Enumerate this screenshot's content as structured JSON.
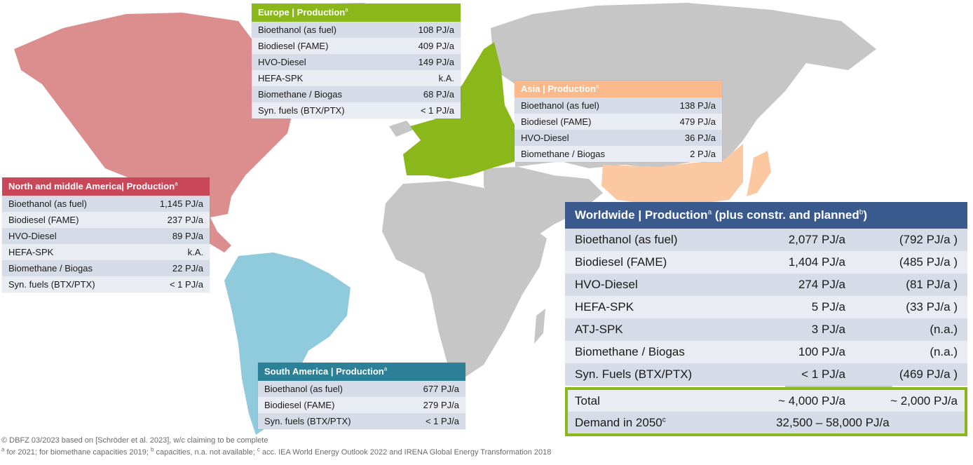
{
  "colors": {
    "na": "#c8485a",
    "na_land": "#dc8e8f",
    "europe": "#8ab81b",
    "asia": "#f9b98a",
    "asia_land": "#fbc8a2",
    "south_america": "#2c8097",
    "sa_land": "#8fcbdc",
    "worldwide": "#3a5a8d",
    "grey_land": "#c6c6c6"
  },
  "panels": {
    "europe": {
      "title": "Europe | Production",
      "sup": "a",
      "rows": [
        {
          "label": "Bioethanol (as fuel)",
          "value": "108 PJ/a"
        },
        {
          "label": "Biodiesel (FAME)",
          "value": "409 PJ/a"
        },
        {
          "label": "HVO-Diesel",
          "value": "149 PJ/a"
        },
        {
          "label": "HEFA-SPK",
          "value": "k.A."
        },
        {
          "label": "Biomethane / Biogas",
          "value": "68 PJ/a"
        },
        {
          "label": "Syn. fuels (BTX/PTX)",
          "value": "< 1 PJ/a"
        }
      ]
    },
    "asia": {
      "title": "Asia | Production",
      "sup": "a",
      "rows": [
        {
          "label": "Bioethanol (as fuel)",
          "value": "138 PJ/a"
        },
        {
          "label": "Biodiesel (FAME)",
          "value": "479 PJ/a"
        },
        {
          "label": "HVO-Diesel",
          "value": "36 PJ/a"
        },
        {
          "label": "Biomethane / Biogas",
          "value": "2 PJ/a"
        }
      ]
    },
    "north_america": {
      "title": "North and middle America| Production",
      "sup": "a",
      "rows": [
        {
          "label": "Bioethanol (as fuel)",
          "value": "1,145 PJ/a"
        },
        {
          "label": "Biodiesel (FAME)",
          "value": "237 PJ/a"
        },
        {
          "label": "HVO-Diesel",
          "value": "89 PJ/a"
        },
        {
          "label": "HEFA-SPK",
          "value": "k.A."
        },
        {
          "label": "Biomethane / Biogas",
          "value": "22 PJ/a"
        },
        {
          "label": "Syn. fuels (BTX/PTX)",
          "value": "< 1 PJ/a"
        }
      ]
    },
    "south_america": {
      "title": "South America | Production",
      "sup": "a",
      "rows": [
        {
          "label": "Bioethanol (as fuel)",
          "value": "677 PJ/a"
        },
        {
          "label": "Biodiesel (FAME)",
          "value": "279 PJ/a"
        },
        {
          "label": "Syn. fuels (BTX/PTX)",
          "value": "< 1 PJ/a"
        }
      ]
    }
  },
  "worldwide": {
    "title_a": "Worldwide | Production",
    "sup_a": "a",
    "title_b": " (plus constr. and planned",
    "sup_b": "b",
    "title_c": ")",
    "rows": [
      {
        "label": "Bioethanol (as fuel)",
        "value": "2,077 PJ/a",
        "planned": "(792 PJ/a )"
      },
      {
        "label": "Biodiesel (FAME)",
        "value": "1,404 PJ/a",
        "planned": "(485 PJ/a )"
      },
      {
        "label": "HVO-Diesel",
        "value": "274 PJ/a",
        "planned": "(81 PJ/a )"
      },
      {
        "label": "HEFA-SPK",
        "value": "5 PJ/a",
        "planned": "(33 PJ/a )"
      },
      {
        "label": "ATJ-SPK",
        "value": "3 PJ/a",
        "planned": "(n.a.)"
      },
      {
        "label": "Biomethane / Biogas",
        "value": "100 PJ/a",
        "planned": "(n.a.)"
      },
      {
        "label": "Syn. Fuels (BTX/PTX)",
        "value": "< 1 PJ/a",
        "planned": "(469 PJ/a )"
      }
    ],
    "total": {
      "label": "Total",
      "value": "~ 4,000 PJ/a",
      "planned": "~ 2,000 PJ/a"
    },
    "demand": {
      "label": "Demand in 2050",
      "sup": "c",
      "value": "32,500 – 58,000 PJ/a"
    }
  },
  "footnotes": {
    "line1": "© DBFZ 03/2023 based on [Schröder et al. 2023], w/c claiming to be complete",
    "line2_a_sup": "a",
    "line2_a": " for 2021; for biomethane capacities 2019; ",
    "line2_b_sup": "b",
    "line2_b": " capacities, n.a. not available; ",
    "line2_c_sup": "c",
    "line2_c": " acc. IEA World Energy Outlook 2022 and IRENA Global Energy Transformation 2018"
  }
}
